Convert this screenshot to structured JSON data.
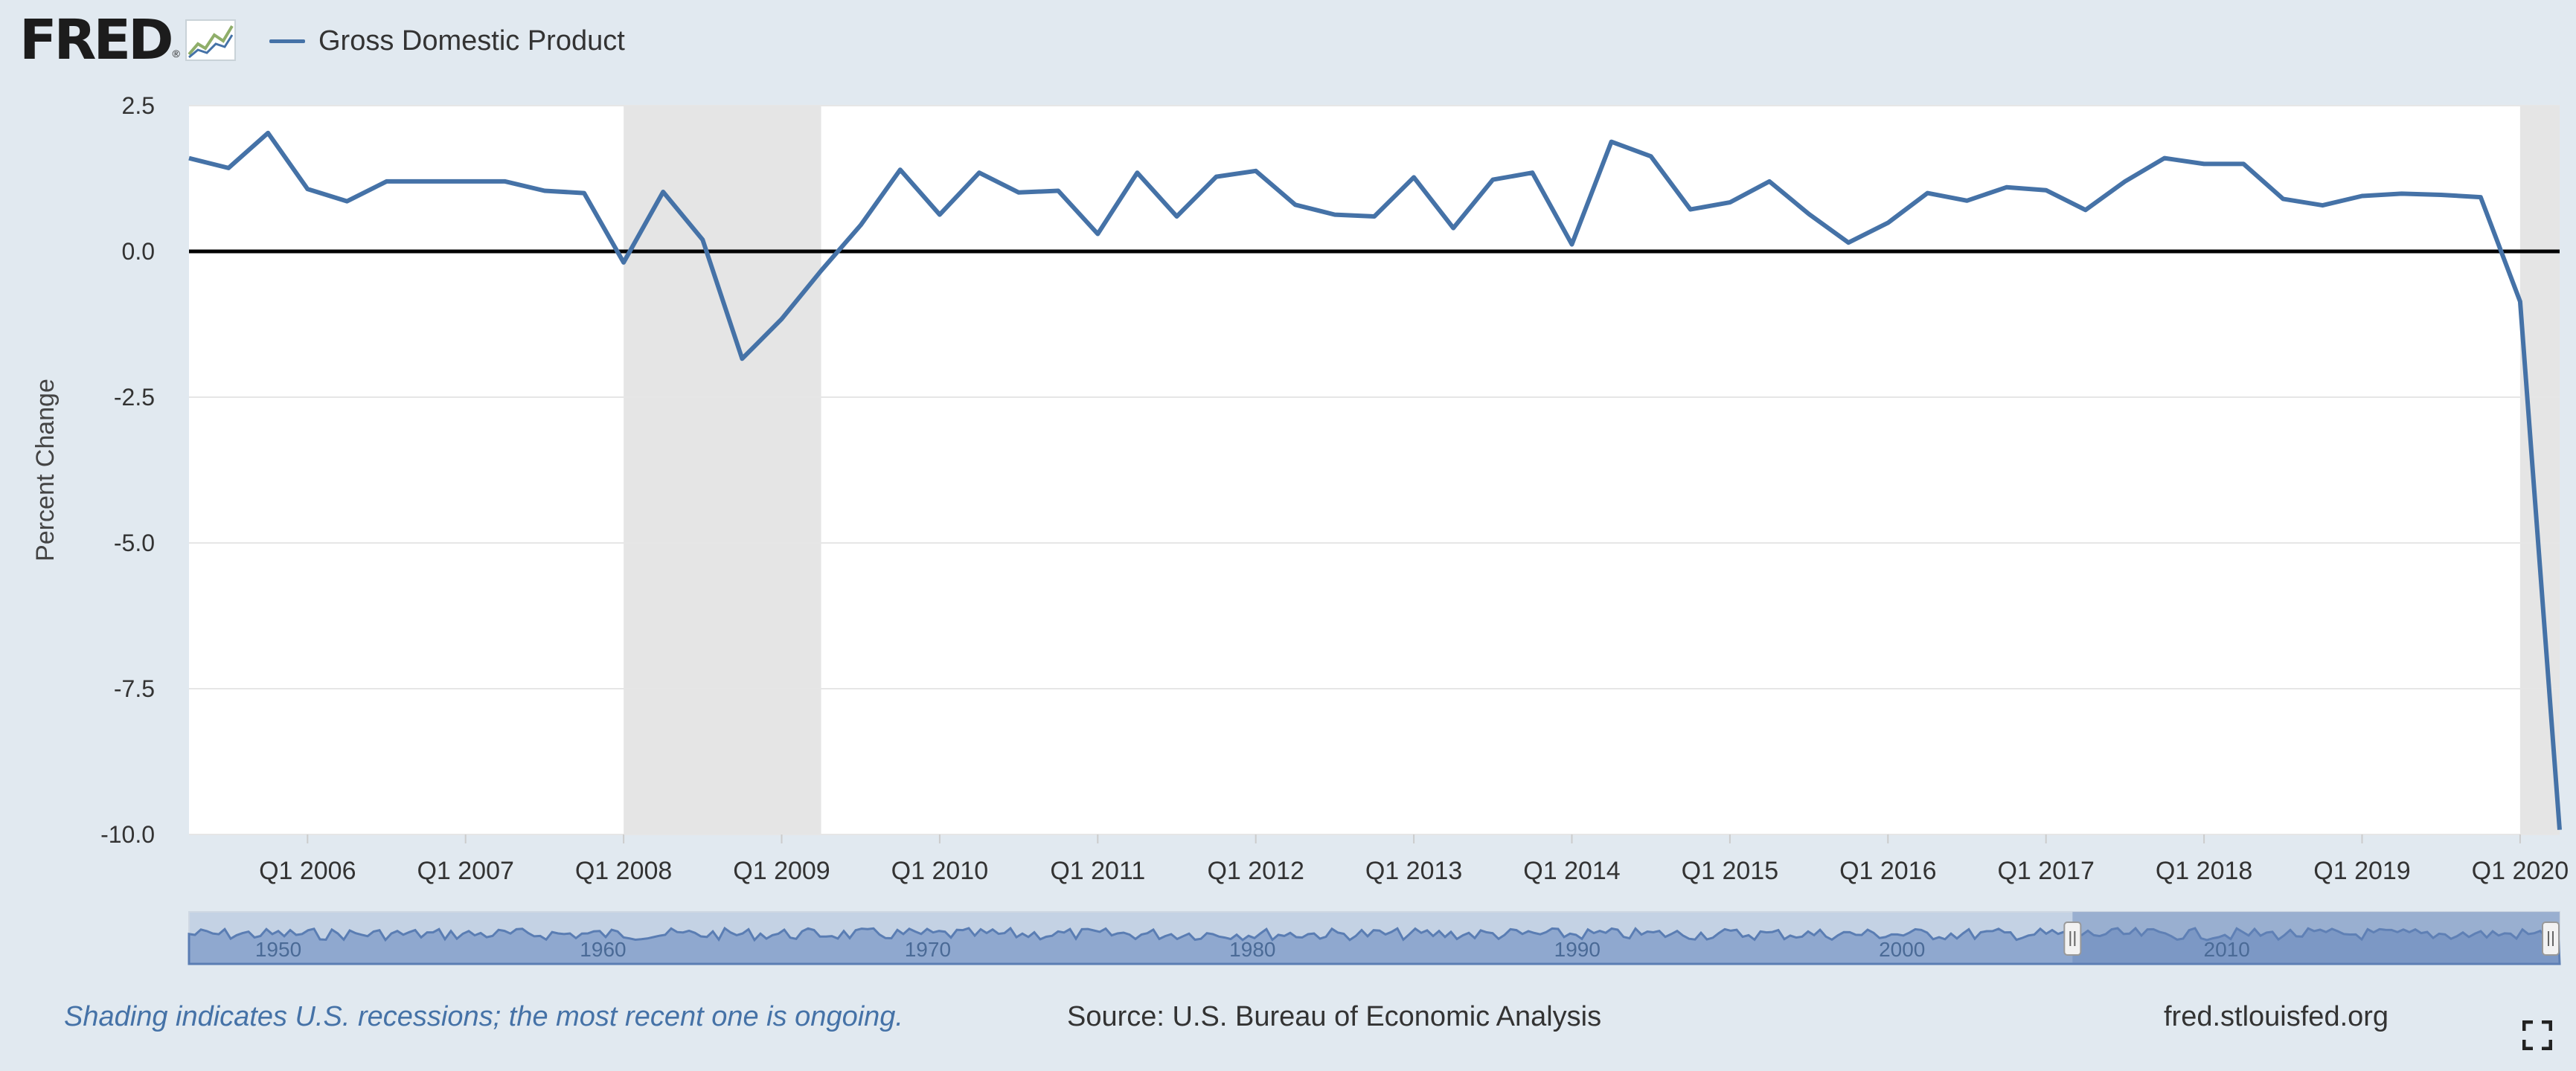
{
  "header": {
    "logo_text": "FRED",
    "logo_reg": "®",
    "legend_label": "Gross Domestic Product",
    "series_color": "#4572a7"
  },
  "chart_data": {
    "type": "line",
    "title": "",
    "ylabel": "Percent Change",
    "ylim": [
      -10.0,
      2.5
    ],
    "yticks": [
      "2.5",
      "0.0",
      "-2.5",
      "-5.0",
      "-7.5",
      "-10.0"
    ],
    "xticks": [
      "Q1 2006",
      "Q1 2007",
      "Q1 2008",
      "Q1 2009",
      "Q1 2010",
      "Q1 2011",
      "Q1 2012",
      "Q1 2013",
      "Q1 2014",
      "Q1 2015",
      "Q1 2016",
      "Q1 2017",
      "Q1 2018",
      "Q1 2019",
      "Q1 2020"
    ],
    "x_start": "Q2 2005",
    "x_end": "Q2 2020",
    "grid": true,
    "zero_line": true,
    "recessions": [
      {
        "start": "Q1 2008",
        "end": "Q2 2009"
      },
      {
        "start": "Q1 2020",
        "end": "Q2 2020"
      }
    ],
    "series": [
      {
        "name": "Gross Domestic Product",
        "color": "#4572a7",
        "x": [
          "Q2 2005",
          "Q3 2005",
          "Q4 2005",
          "Q1 2006",
          "Q2 2006",
          "Q3 2006",
          "Q4 2006",
          "Q1 2007",
          "Q2 2007",
          "Q3 2007",
          "Q4 2007",
          "Q1 2008",
          "Q2 2008",
          "Q3 2008",
          "Q4 2008",
          "Q1 2009",
          "Q2 2009",
          "Q3 2009",
          "Q4 2009",
          "Q1 2010",
          "Q2 2010",
          "Q3 2010",
          "Q4 2010",
          "Q1 2011",
          "Q2 2011",
          "Q3 2011",
          "Q4 2011",
          "Q1 2012",
          "Q2 2012",
          "Q3 2012",
          "Q4 2012",
          "Q1 2013",
          "Q2 2013",
          "Q3 2013",
          "Q4 2013",
          "Q1 2014",
          "Q2 2014",
          "Q3 2014",
          "Q4 2014",
          "Q1 2015",
          "Q2 2015",
          "Q3 2015",
          "Q4 2015",
          "Q1 2016",
          "Q2 2016",
          "Q3 2016",
          "Q4 2016",
          "Q1 2017",
          "Q2 2017",
          "Q3 2017",
          "Q4 2017",
          "Q1 2018",
          "Q2 2018",
          "Q3 2018",
          "Q4 2018",
          "Q1 2019",
          "Q2 2019",
          "Q3 2019",
          "Q4 2019",
          "Q1 2020",
          "Q2 2020"
        ],
        "values": [
          1.6,
          1.43,
          2.03,
          1.07,
          0.86,
          1.2,
          1.2,
          1.2,
          1.2,
          1.04,
          1.0,
          -0.19,
          1.02,
          0.2,
          -1.84,
          -1.16,
          -0.33,
          0.45,
          1.4,
          0.63,
          1.35,
          1.01,
          1.04,
          0.3,
          1.35,
          0.6,
          1.28,
          1.38,
          0.8,
          0.63,
          0.6,
          1.27,
          0.4,
          1.23,
          1.35,
          0.12,
          1.88,
          1.63,
          0.72,
          0.84,
          1.2,
          0.64,
          0.15,
          0.49,
          1.0,
          0.87,
          1.1,
          1.05,
          0.71,
          1.2,
          1.6,
          1.5,
          1.5,
          0.9,
          0.79,
          0.95,
          0.99,
          0.97,
          0.93,
          -0.86,
          -9.92
        ]
      }
    ]
  },
  "navigator": {
    "labels": [
      "1950",
      "1960",
      "1970",
      "1980",
      "1990",
      "2000",
      "2010"
    ],
    "range_start": "Q2 1947",
    "range_end": "Q2 2020",
    "selected_start": "Q2 2005",
    "selected_end": "Q2 2020"
  },
  "footer": {
    "note": "Shading indicates U.S. recessions; the most recent one is ongoing.",
    "source": "Source: U.S. Bureau of Economic Analysis",
    "url": "fred.stlouisfed.org"
  }
}
